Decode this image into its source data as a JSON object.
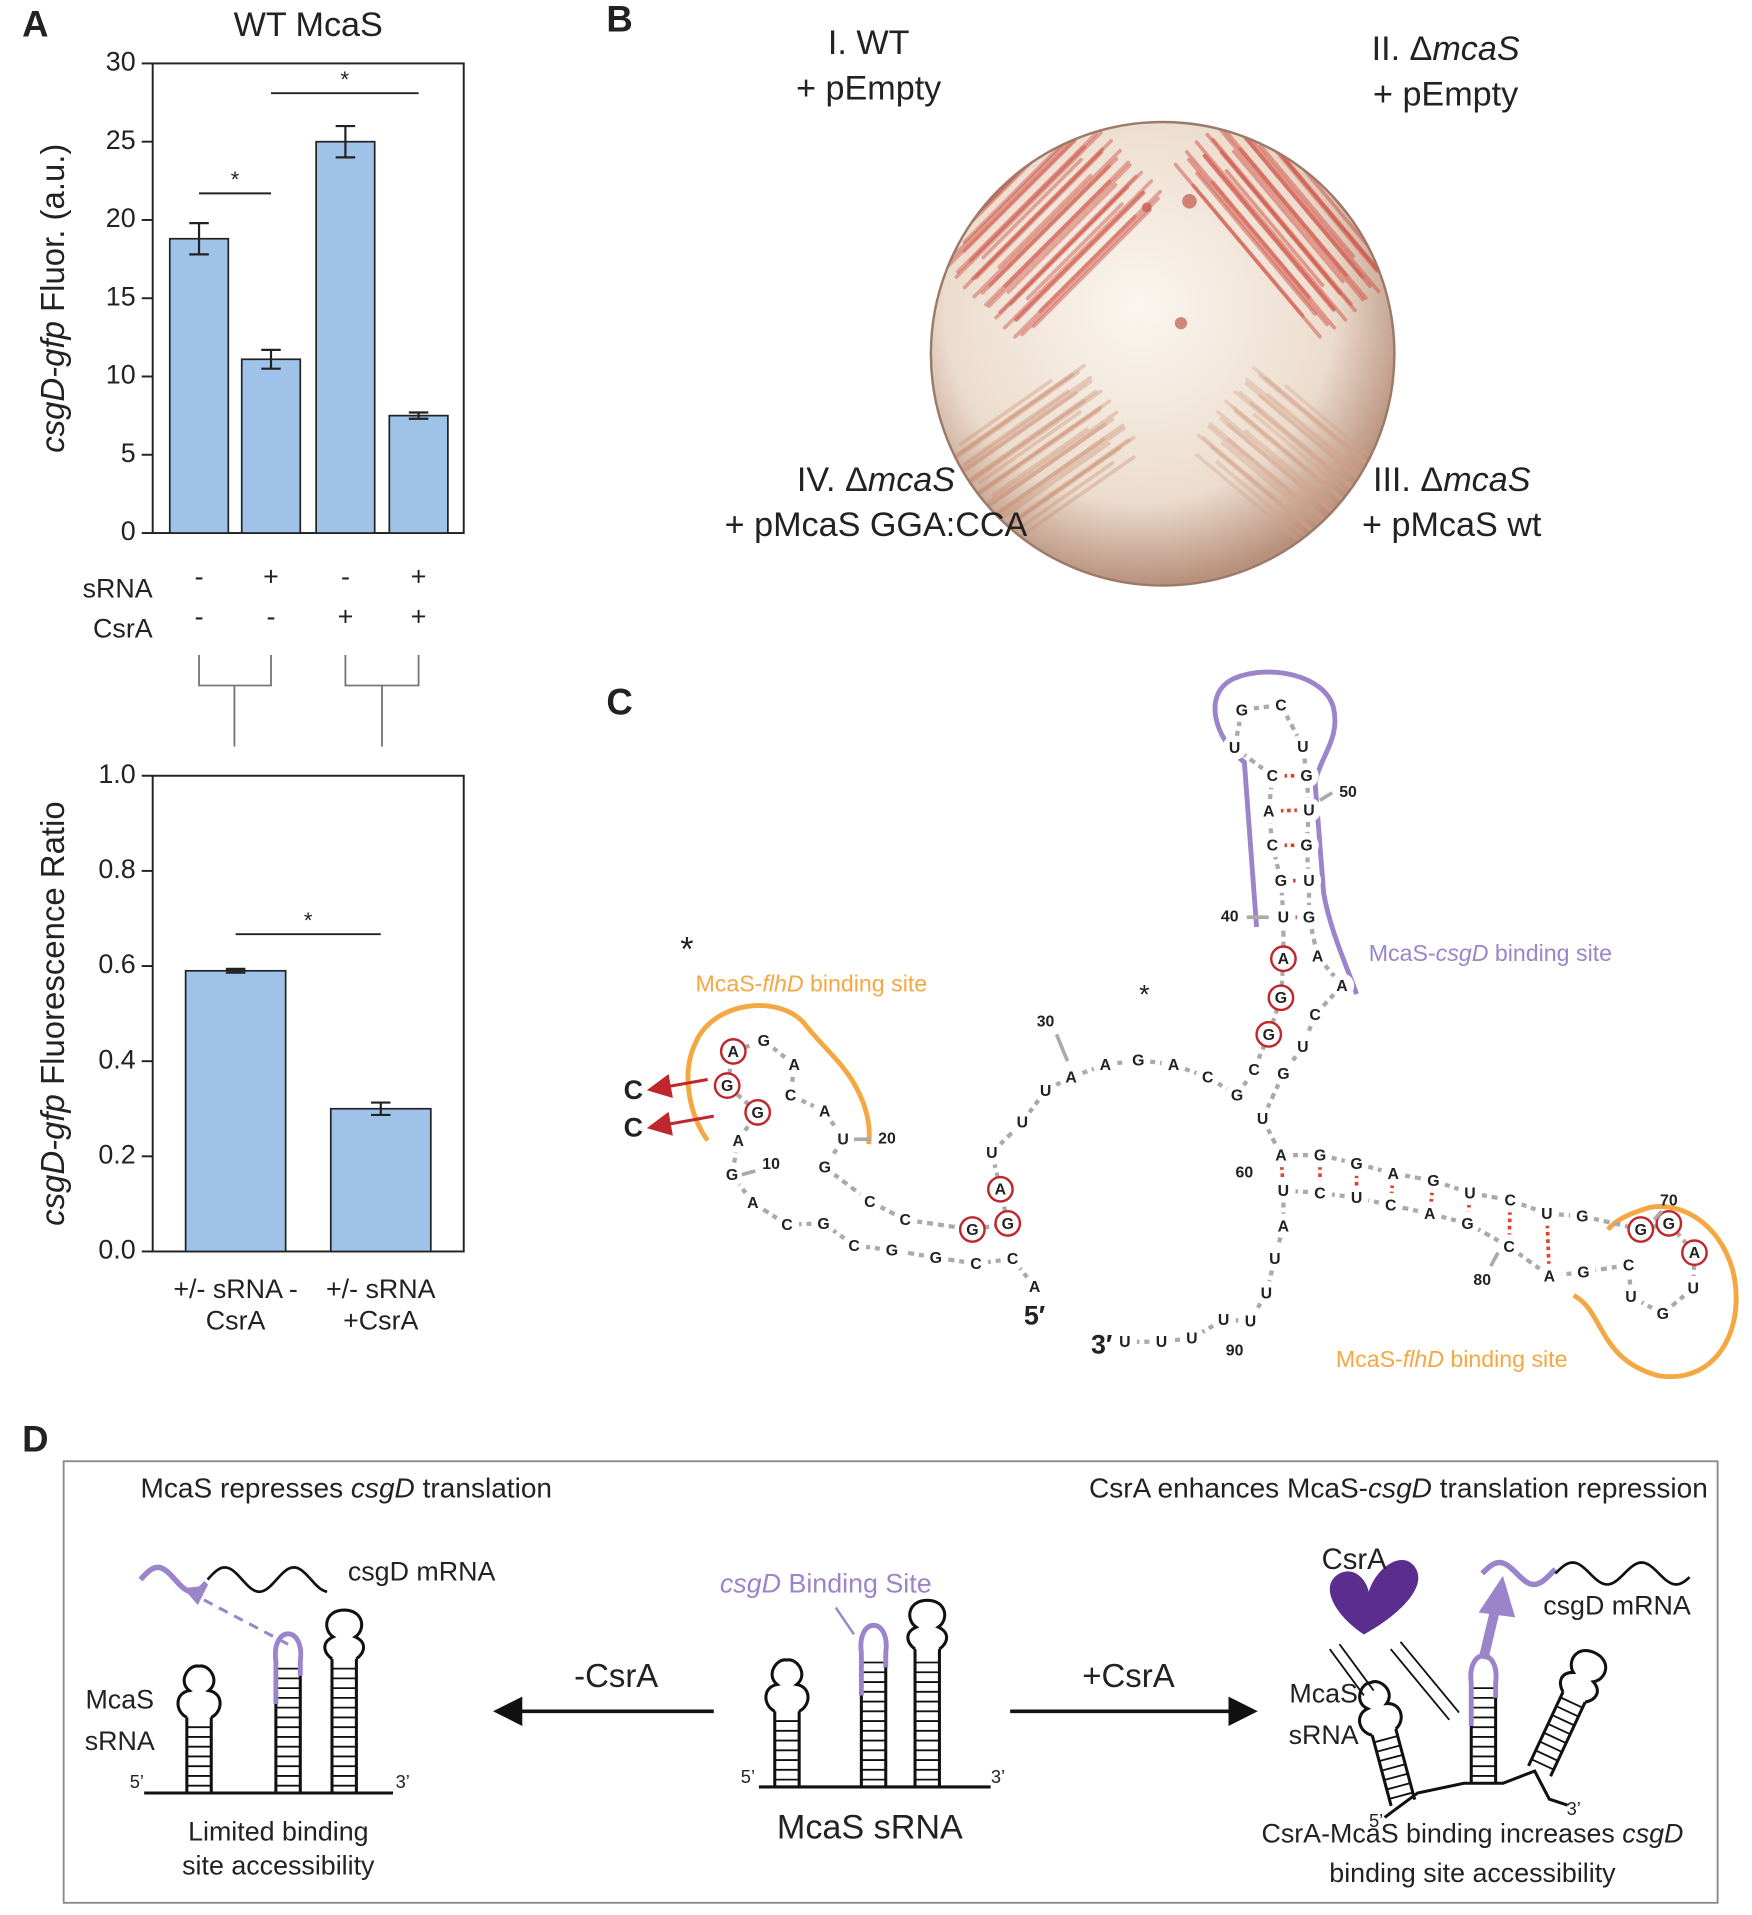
{
  "chart_data": [
    {
      "type": "bar",
      "panel_label": "A",
      "title": "WT McaS",
      "ylabel": [
        {
          "italic": "csgD-gfp"
        },
        " Fluor. (a.u.)"
      ],
      "values": [
        18.8,
        11.1,
        25.0,
        7.5
      ],
      "errors": [
        1.0,
        0.6,
        1.0,
        0.2
      ],
      "color": "#9fc2e9",
      "ylim": [
        0,
        30
      ],
      "yticks": [
        0,
        5,
        10,
        15,
        20,
        25,
        30
      ],
      "significance": [
        {
          "from": 0,
          "to": 1,
          "y": 21.7,
          "label": "*"
        },
        {
          "from": 1,
          "to": 3,
          "y": 28.1,
          "label": "*"
        }
      ],
      "conditions": [
        {
          "label": "sRNA",
          "marks": [
            "-",
            "+",
            "-",
            "+"
          ]
        },
        {
          "label": "CsrA",
          "marks": [
            "-",
            "-",
            "+",
            "+"
          ]
        }
      ]
    },
    {
      "type": "bar",
      "ylabel": [
        {
          "italic": "csgD-gfp"
        },
        " Fluorescence Ratio"
      ],
      "categories": [
        "+/- sRNA -CsrA",
        "+/- sRNA +CsrA"
      ],
      "values": [
        0.59,
        0.3
      ],
      "errors": [
        0.004,
        0.013
      ],
      "color": "#9fc2e9",
      "ylim": [
        0,
        1.0
      ],
      "yticks": [
        {
          "value": 0,
          "label": "0.0"
        },
        0.2,
        0.4,
        0.6,
        0.8,
        {
          "value": 1.0,
          "label": "1.0"
        }
      ],
      "significance": [
        {
          "from": 0,
          "to": 1,
          "y": 0.667,
          "label": "*"
        }
      ]
    }
  ],
  "plate": {
    "panel_label": "B",
    "strains": [
      {
        "lines": [
          "I. WT",
          "+ pEmpty"
        ]
      },
      {
        "lines": [
          [
            "II. Δ",
            {
              "italic": "mcaS"
            }
          ],
          "+ pEmpty"
        ]
      },
      {
        "lines": [
          [
            "III. Δ",
            {
              "italic": "mcaS"
            }
          ],
          "+ pMcaS wt"
        ]
      },
      {
        "lines": [
          [
            "IV. Δ",
            {
              "italic": "mcaS"
            }
          ],
          "+ pMcaS GGA:CCA"
        ]
      }
    ]
  },
  "rna": {
    "panel_label": "C",
    "sequence": "ACCGGCGCAGAGGAGACAUGCCGGAUUUAAGACGCGGAUGCACUGCUGUGUGAACUGUAGGAGUCUGGGAUGUCGACGACUCUAUUUUUUU",
    "ends": [
      "5′",
      "3′"
    ],
    "position_labels": [
      10,
      20,
      30,
      40,
      50,
      60,
      70,
      80,
      90
    ],
    "mutations": [
      "C",
      "C"
    ],
    "asterisks": [
      "*",
      "*"
    ],
    "flhD_labels": [
      [
        "McaS-",
        {
          "italic": "flhD"
        },
        " binding site"
      ],
      [
        "McaS-",
        {
          "italic": "flhD"
        },
        " binding site"
      ]
    ],
    "csgD_label": [
      "McaS-",
      {
        "italic": "csgD"
      },
      " binding site"
    ]
  },
  "schematic": {
    "panel_label": "D",
    "left_title": [
      "McaS represses ",
      {
        "italic": "csgD"
      },
      " translation"
    ],
    "right_title": [
      "CsrA enhances McaS-",
      {
        "italic": "csgD"
      },
      " translation repression"
    ],
    "mrna_labels": [
      "csgD mRNA",
      "csgD mRNA"
    ],
    "site_label": [
      {
        "italic": "csgD"
      },
      " Binding Site"
    ],
    "arrow_labels": [
      "-CsrA",
      "+CsrA"
    ],
    "srna_labels": [
      [
        "McaS",
        "sRNA"
      ],
      [
        "McaS",
        "sRNA"
      ]
    ],
    "ends": [
      [
        "5’",
        "3’"
      ],
      [
        "5’",
        "3’"
      ],
      [
        "5’",
        "3’"
      ]
    ],
    "csra": "CsrA",
    "left_caption": [
      "Limited binding",
      "site accessibility"
    ],
    "center_caption": "McaS sRNA",
    "right_caption": [
      [
        "CsrA-McaS binding increases ",
        {
          "italic": "csgD"
        }
      ],
      "binding site accessibility"
    ]
  }
}
